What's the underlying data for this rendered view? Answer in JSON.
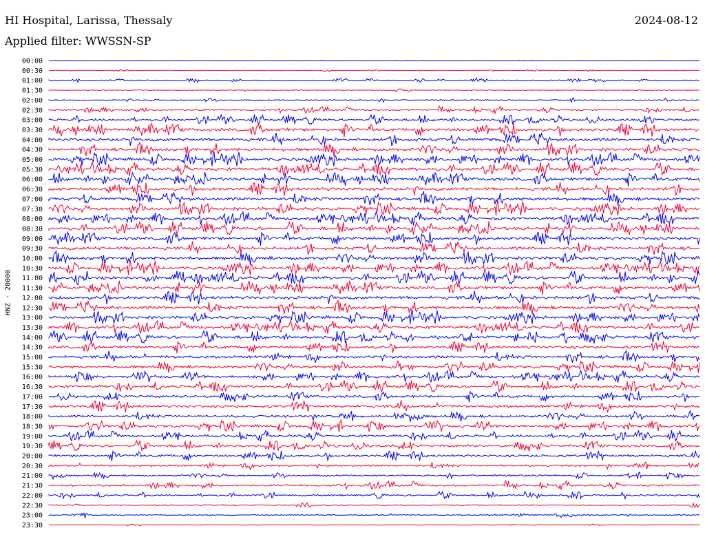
{
  "header": {
    "station": "HI Hospital, Larissa, Thessaly",
    "date": "2024-08-12",
    "filter": "Applied filter: WWSSN-SP"
  },
  "chart_data": {
    "type": "line",
    "title": "HI Hospital, Larissa, Thessaly",
    "subtitle": "Applied filter: WWSSN-SP",
    "ylabel": "HNZ - 20000",
    "colors": {
      "even_rows": "#0000ee",
      "odd_rows": "#ee0033"
    },
    "rows": [
      {
        "label": "00:00",
        "amplitude": 0.3
      },
      {
        "label": "00:30",
        "amplitude": 0.6
      },
      {
        "label": "01:00",
        "amplitude": 1.2
      },
      {
        "label": "01:30",
        "amplitude": 1.0
      },
      {
        "label": "02:00",
        "amplitude": 1.3
      },
      {
        "label": "02:30",
        "amplitude": 2.0
      },
      {
        "label": "03:00",
        "amplitude": 3.0
      },
      {
        "label": "03:30",
        "amplitude": 4.0
      },
      {
        "label": "04:00",
        "amplitude": 4.0
      },
      {
        "label": "04:30",
        "amplitude": 4.0
      },
      {
        "label": "05:00",
        "amplitude": 4.0
      },
      {
        "label": "05:30",
        "amplitude": 4.0
      },
      {
        "label": "06:00",
        "amplitude": 4.0
      },
      {
        "label": "06:30",
        "amplitude": 4.0
      },
      {
        "label": "07:00",
        "amplitude": 4.0
      },
      {
        "label": "07:30",
        "amplitude": 4.0
      },
      {
        "label": "08:00",
        "amplitude": 4.0
      },
      {
        "label": "08:30",
        "amplitude": 4.0
      },
      {
        "label": "09:00",
        "amplitude": 4.0
      },
      {
        "label": "09:30",
        "amplitude": 4.0
      },
      {
        "label": "10:00",
        "amplitude": 4.0
      },
      {
        "label": "10:30",
        "amplitude": 4.0
      },
      {
        "label": "11:00",
        "amplitude": 4.0
      },
      {
        "label": "11:30",
        "amplitude": 4.0
      },
      {
        "label": "12:00",
        "amplitude": 4.0
      },
      {
        "label": "12:30",
        "amplitude": 4.0
      },
      {
        "label": "13:00",
        "amplitude": 3.8
      },
      {
        "label": "13:30",
        "amplitude": 3.8
      },
      {
        "label": "14:00",
        "amplitude": 3.8
      },
      {
        "label": "14:30",
        "amplitude": 3.5
      },
      {
        "label": "15:00",
        "amplitude": 3.5
      },
      {
        "label": "15:30",
        "amplitude": 3.5
      },
      {
        "label": "16:00",
        "amplitude": 3.5
      },
      {
        "label": "16:30",
        "amplitude": 3.5
      },
      {
        "label": "17:00",
        "amplitude": 3.2
      },
      {
        "label": "17:30",
        "amplitude": 3.5
      },
      {
        "label": "18:00",
        "amplitude": 3.2
      },
      {
        "label": "18:30",
        "amplitude": 3.5
      },
      {
        "label": "19:00",
        "amplitude": 3.2
      },
      {
        "label": "19:30",
        "amplitude": 3.2
      },
      {
        "label": "20:00",
        "amplitude": 3.0
      },
      {
        "label": "20:30",
        "amplitude": 2.5
      },
      {
        "label": "21:00",
        "amplitude": 2.0
      },
      {
        "label": "21:30",
        "amplitude": 2.5
      },
      {
        "label": "22:00",
        "amplitude": 2.2
      },
      {
        "label": "22:30",
        "amplitude": 1.5
      },
      {
        "label": "23:00",
        "amplitude": 1.5
      },
      {
        "label": "23:30",
        "amplitude": 0.6
      }
    ]
  }
}
